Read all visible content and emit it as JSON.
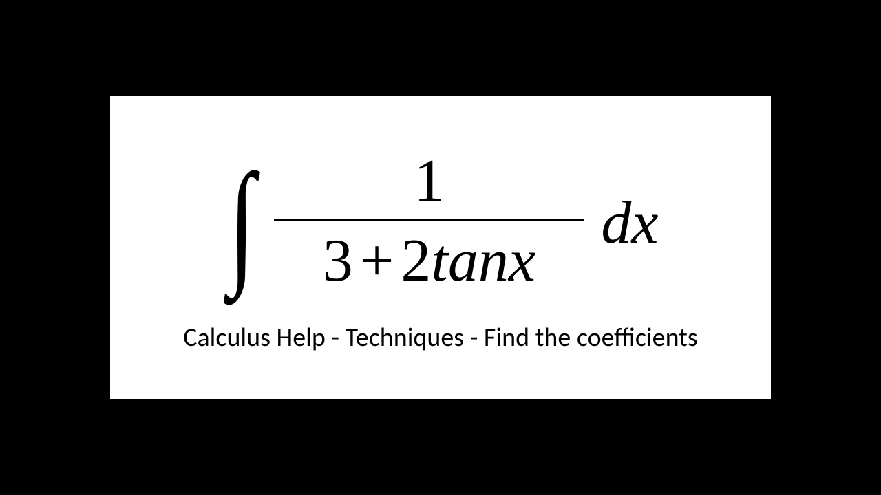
{
  "page": {
    "background_color": "#000000",
    "card_background": "#ffffff"
  },
  "equation": {
    "integral_symbol": "∫",
    "numerator": "1",
    "denominator_a": "3",
    "denominator_op": "+",
    "denominator_b": "2",
    "denominator_func": "tanx",
    "differential": "dx",
    "text_color": "#000000",
    "numerator_fontsize": 88,
    "denominator_fontsize": 88,
    "integral_fontsize": 200
  },
  "caption": {
    "text": "Calculus Help - Techniques - Find the coefficients",
    "fontsize": 38,
    "color": "#000000",
    "font_family": "Calibri"
  }
}
